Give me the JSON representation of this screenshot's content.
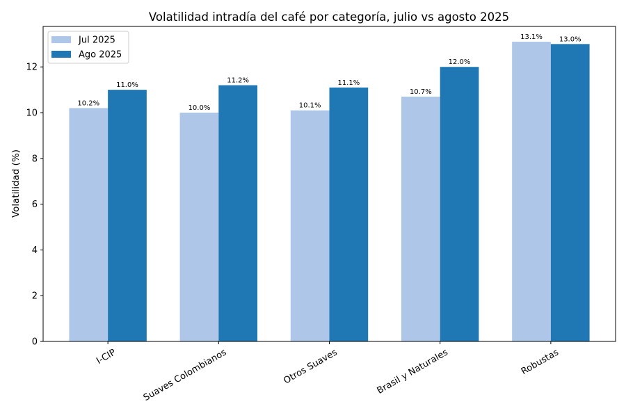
{
  "chart_data": {
    "type": "bar",
    "title": "Volatilidad intradía del café por categoría, julio vs agosto 2025",
    "xlabel": "",
    "ylabel": "Volatilidad (%)",
    "ylim": [
      0,
      13.77
    ],
    "yticks": [
      0,
      2,
      4,
      6,
      8,
      10,
      12
    ],
    "categories": [
      "I-CIP",
      "Suaves Colombianos",
      "Otros Suaves",
      "Brasil y Naturales",
      "Robustas"
    ],
    "series": [
      {
        "name": "Jul 2025",
        "color": "#aec7e8",
        "values": [
          10.2,
          10.0,
          10.1,
          10.7,
          13.1
        ],
        "labels": [
          "10.2%",
          "10.0%",
          "10.1%",
          "10.7%",
          "13.1%"
        ]
      },
      {
        "name": "Ago 2025",
        "color": "#1f77b4",
        "values": [
          11.0,
          11.2,
          11.1,
          12.0,
          13.0
        ],
        "labels": [
          "11.0%",
          "11.2%",
          "11.1%",
          "12.0%",
          "13.0%"
        ]
      }
    ],
    "legend_position": "top-left",
    "grid": false
  }
}
